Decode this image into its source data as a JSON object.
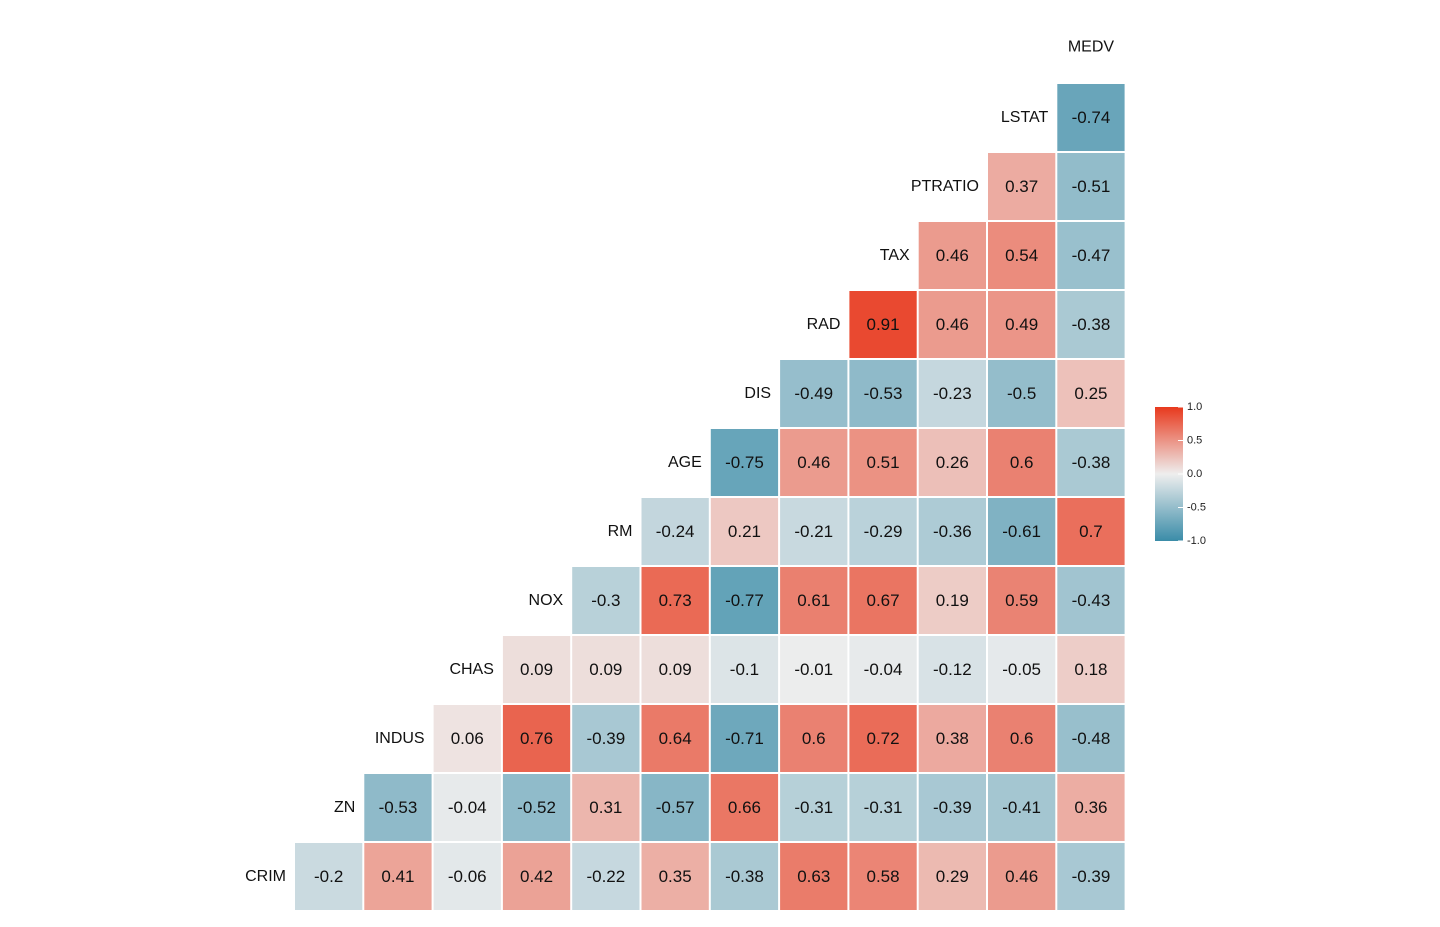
{
  "chart_data": {
    "type": "heatmap",
    "title": "",
    "variables": [
      "CRIM",
      "ZN",
      "INDUS",
      "CHAS",
      "NOX",
      "RM",
      "AGE",
      "DIS",
      "RAD",
      "TAX",
      "PTRATIO",
      "LSTAT",
      "MEDV"
    ],
    "correlations": [
      [
        "ZN",
        "CRIM",
        -0.2
      ],
      [
        "INDUS",
        "CRIM",
        0.41
      ],
      [
        "INDUS",
        "ZN",
        -0.53
      ],
      [
        "CHAS",
        "CRIM",
        -0.06
      ],
      [
        "CHAS",
        "ZN",
        -0.04
      ],
      [
        "CHAS",
        "INDUS",
        0.06
      ],
      [
        "NOX",
        "CRIM",
        0.42
      ],
      [
        "NOX",
        "ZN",
        -0.52
      ],
      [
        "NOX",
        "INDUS",
        0.76
      ],
      [
        "NOX",
        "CHAS",
        0.09
      ],
      [
        "RM",
        "CRIM",
        -0.22
      ],
      [
        "RM",
        "ZN",
        0.31
      ],
      [
        "RM",
        "INDUS",
        -0.39
      ],
      [
        "RM",
        "CHAS",
        0.09
      ],
      [
        "RM",
        "NOX",
        -0.3
      ],
      [
        "AGE",
        "CRIM",
        0.35
      ],
      [
        "AGE",
        "ZN",
        -0.57
      ],
      [
        "AGE",
        "INDUS",
        0.64
      ],
      [
        "AGE",
        "CHAS",
        0.09
      ],
      [
        "AGE",
        "NOX",
        0.73
      ],
      [
        "AGE",
        "RM",
        -0.24
      ],
      [
        "DIS",
        "CRIM",
        -0.38
      ],
      [
        "DIS",
        "ZN",
        0.66
      ],
      [
        "DIS",
        "INDUS",
        -0.71
      ],
      [
        "DIS",
        "CHAS",
        -0.1
      ],
      [
        "DIS",
        "NOX",
        -0.77
      ],
      [
        "DIS",
        "RM",
        0.21
      ],
      [
        "DIS",
        "AGE",
        -0.75
      ],
      [
        "RAD",
        "CRIM",
        0.63
      ],
      [
        "RAD",
        "ZN",
        -0.31
      ],
      [
        "RAD",
        "INDUS",
        0.6
      ],
      [
        "RAD",
        "CHAS",
        -0.01
      ],
      [
        "RAD",
        "NOX",
        0.61
      ],
      [
        "RAD",
        "RM",
        -0.21
      ],
      [
        "RAD",
        "AGE",
        0.46
      ],
      [
        "RAD",
        "DIS",
        -0.49
      ],
      [
        "TAX",
        "CRIM",
        0.58
      ],
      [
        "TAX",
        "ZN",
        -0.31
      ],
      [
        "TAX",
        "INDUS",
        0.72
      ],
      [
        "TAX",
        "CHAS",
        -0.04
      ],
      [
        "TAX",
        "NOX",
        0.67
      ],
      [
        "TAX",
        "RM",
        -0.29
      ],
      [
        "TAX",
        "AGE",
        0.51
      ],
      [
        "TAX",
        "DIS",
        -0.53
      ],
      [
        "TAX",
        "RAD",
        0.91
      ],
      [
        "PTRATIO",
        "CRIM",
        0.29
      ],
      [
        "PTRATIO",
        "ZN",
        -0.39
      ],
      [
        "PTRATIO",
        "INDUS",
        0.38
      ],
      [
        "PTRATIO",
        "CHAS",
        -0.12
      ],
      [
        "PTRATIO",
        "NOX",
        0.19
      ],
      [
        "PTRATIO",
        "RM",
        -0.36
      ],
      [
        "PTRATIO",
        "AGE",
        0.26
      ],
      [
        "PTRATIO",
        "DIS",
        -0.23
      ],
      [
        "PTRATIO",
        "RAD",
        0.46
      ],
      [
        "PTRATIO",
        "TAX",
        0.46
      ],
      [
        "LSTAT",
        "CRIM",
        0.46
      ],
      [
        "LSTAT",
        "ZN",
        -0.41
      ],
      [
        "LSTAT",
        "INDUS",
        0.6
      ],
      [
        "LSTAT",
        "CHAS",
        -0.05
      ],
      [
        "LSTAT",
        "NOX",
        0.59
      ],
      [
        "LSTAT",
        "RM",
        -0.61
      ],
      [
        "LSTAT",
        "AGE",
        0.6
      ],
      [
        "LSTAT",
        "DIS",
        -0.5
      ],
      [
        "LSTAT",
        "RAD",
        0.49
      ],
      [
        "LSTAT",
        "TAX",
        0.54
      ],
      [
        "LSTAT",
        "PTRATIO",
        0.37
      ],
      [
        "MEDV",
        "CRIM",
        -0.39
      ],
      [
        "MEDV",
        "ZN",
        0.36
      ],
      [
        "MEDV",
        "INDUS",
        -0.48
      ],
      [
        "MEDV",
        "CHAS",
        0.18
      ],
      [
        "MEDV",
        "NOX",
        -0.43
      ],
      [
        "MEDV",
        "RM",
        0.7
      ],
      [
        "MEDV",
        "AGE",
        -0.38
      ],
      [
        "MEDV",
        "DIS",
        0.25
      ],
      [
        "MEDV",
        "RAD",
        -0.38
      ],
      [
        "MEDV",
        "TAX",
        -0.47
      ],
      [
        "MEDV",
        "PTRATIO",
        -0.51
      ],
      [
        "MEDV",
        "LSTAT",
        -0.74
      ]
    ],
    "value_range": [
      -1.0,
      1.0
    ],
    "color_scale": {
      "low": "#3a8ca8",
      "mid": "#eeeeee",
      "high": "#e8391d"
    },
    "legend": {
      "position": "right",
      "ticks": [
        1.0,
        0.5,
        0.0,
        -0.5,
        -1.0
      ],
      "tick_labels": [
        "1.0",
        "0.5",
        "0.0",
        "-0.5",
        "-1.0"
      ]
    },
    "grid": false
  }
}
